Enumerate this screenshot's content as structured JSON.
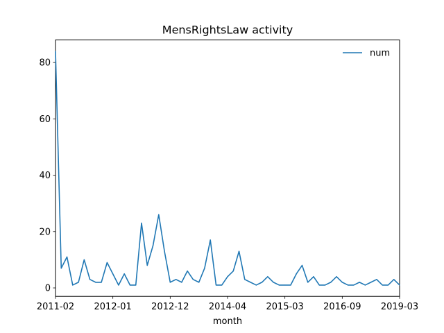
{
  "chart_data": {
    "type": "line",
    "title": "MensRightsLaw activity",
    "xlabel": "month",
    "ylabel": "",
    "x_tick_labels": [
      "2011-02",
      "2012-01",
      "2012-12",
      "2014-04",
      "2015-03",
      "2016-09",
      "2019-03"
    ],
    "y_ticks": [
      0,
      20,
      40,
      60,
      80
    ],
    "ylim": [
      -3,
      88
    ],
    "grid": false,
    "legend": {
      "placement": "top-right"
    },
    "series": [
      {
        "name": "num",
        "color": "#1f77b4",
        "values": [
          84,
          7,
          11,
          1,
          2,
          10,
          3,
          2,
          2,
          9,
          5,
          1,
          5,
          1,
          1,
          23,
          8,
          15,
          26,
          13,
          2,
          3,
          2,
          6,
          3,
          2,
          7,
          17,
          1,
          1,
          4,
          6,
          13,
          3,
          2,
          1,
          2,
          4,
          2,
          1,
          1,
          1,
          5,
          8,
          2,
          4,
          1,
          1,
          2,
          4,
          2,
          1,
          1,
          2,
          1,
          2,
          3,
          1,
          1,
          3,
          1
        ]
      }
    ]
  }
}
